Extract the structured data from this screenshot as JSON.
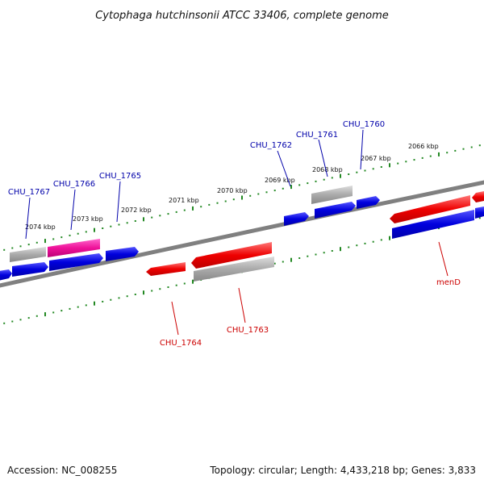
{
  "title": "Cytophaga hutchinsonii ATCC 33406, complete genome",
  "accession": "Accession: NC_008255",
  "summary": "Topology: circular; Length: 4,433,218 bp; Genes: 3,833",
  "ruler": {
    "labels": [
      "2074 kbp",
      "2073 kbp",
      "2072 kbp",
      "2071 kbp",
      "2070 kbp",
      "2069 kbp",
      "2068 kbp",
      "2067 kbp",
      "2066 kbp"
    ],
    "tick_color": "#228822"
  },
  "colors": {
    "forward_gene": "#0000dd",
    "reverse_gene": "#ee0000",
    "pink_gene": "#ee1199",
    "gray_gene": "#aaaaaa",
    "backbone": "#777777",
    "forward_label": "#0000aa",
    "reverse_label": "#cc0000"
  },
  "genes": {
    "forward_labels": [
      "CHU_1767",
      "CHU_1766",
      "CHU_1765",
      "CHU_1762",
      "CHU_1761",
      "CHU_1760"
    ],
    "reverse_labels": [
      "CHU_1764",
      "CHU_1763",
      "menD"
    ]
  }
}
